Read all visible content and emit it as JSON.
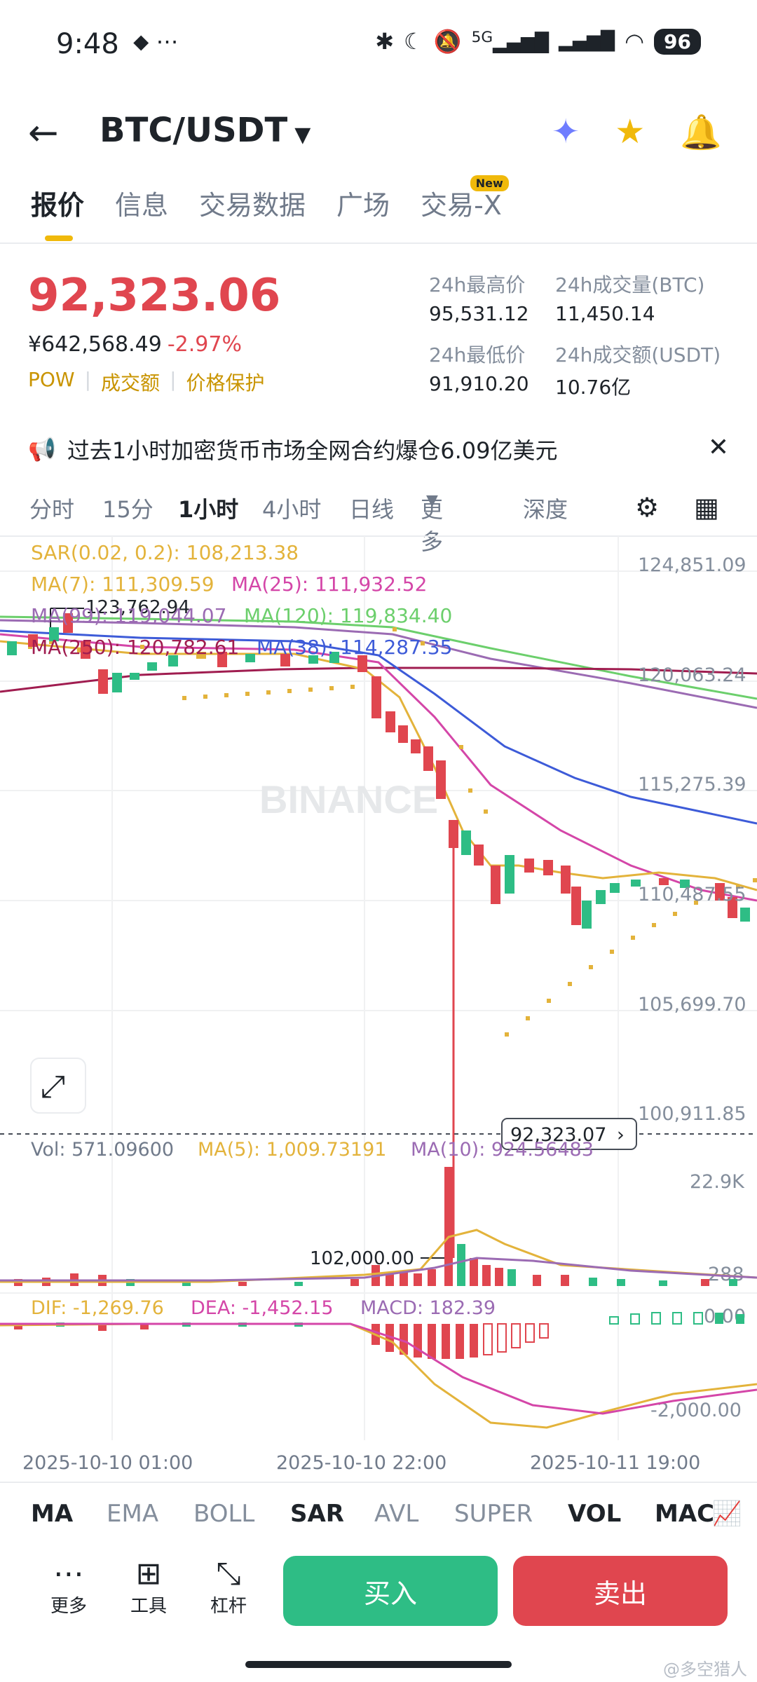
{
  "status": {
    "time": "9:48",
    "battery": "96",
    "network": "5G"
  },
  "header": {
    "pair": "BTC/USDT"
  },
  "tabs": [
    {
      "label": "报价",
      "active": true
    },
    {
      "label": "信息"
    },
    {
      "label": "交易数据"
    },
    {
      "label": "广场"
    },
    {
      "label": "交易-X",
      "badge": "New"
    }
  ],
  "ticker": {
    "price": "92,323.06",
    "cny": "¥642,568.49",
    "change": "-2.97%",
    "tags": [
      "POW",
      "成交额",
      "价格保护"
    ],
    "high_label": "24h最高价",
    "high": "95,531.12",
    "vol_btc_label": "24h成交量(BTC)",
    "vol_btc": "11,450.14",
    "low_label": "24h最低价",
    "low": "91,910.20",
    "vol_usdt_label": "24h成交额(USDT)",
    "vol_usdt": "10.76亿"
  },
  "notice": {
    "text": "过去1小时加密货币市场全网合约爆仓6.09亿美元"
  },
  "intervals": [
    "分时",
    "15分",
    "1小时",
    "4小时",
    "日线",
    "更多",
    "深度"
  ],
  "chart_labels": {
    "sar": "SAR(0.02, 0.2): 108,213.38",
    "ma7": "MA(7): 111,309.59",
    "ma25": "MA(25): 111,932.52",
    "ma99": "MA(99): 119,044.07",
    "ma120": "MA(120): 119,834.40",
    "ma250": "MA(250): 120,782.61",
    "ma38": "MA(38): 114,287.35",
    "high_mark": "123,762.94",
    "low_mark": "102,000.00",
    "last_price": "92,323.07",
    "watermark": "BINANCE",
    "vol": "Vol: 571.09600",
    "vol_ma5": "MA(5): 1,009.73191",
    "vol_ma10": "MA(10): 924.56483",
    "dif": "DIF: -1,269.76",
    "dea": "DEA: -1,452.15",
    "macd": "MACD: 182.39",
    "y_axis": [
      "124,851.09",
      "120,063.24",
      "115,275.39",
      "110,487.55",
      "105,699.70",
      "100,911.85"
    ],
    "vol_axis": [
      "22.9K",
      "288"
    ],
    "macd_axis": [
      "0.00",
      "-2,000.00"
    ],
    "x_axis": [
      "2025-10-10 01:00",
      "2025-10-10 22:00",
      "2025-10-11 19:00"
    ]
  },
  "indicators": [
    "MA",
    "EMA",
    "BOLL",
    "SAR",
    "AVL",
    "SUPER",
    "VOL",
    "MAC"
  ],
  "bottom": {
    "more": "更多",
    "tools": "工具",
    "leverage": "杠杆",
    "buy": "买入",
    "sell": "卖出"
  },
  "watermark_footer": "@多空猎人",
  "colors": {
    "up": "#2ebd85",
    "down": "#e0464f",
    "accent": "#f0b90b"
  }
}
